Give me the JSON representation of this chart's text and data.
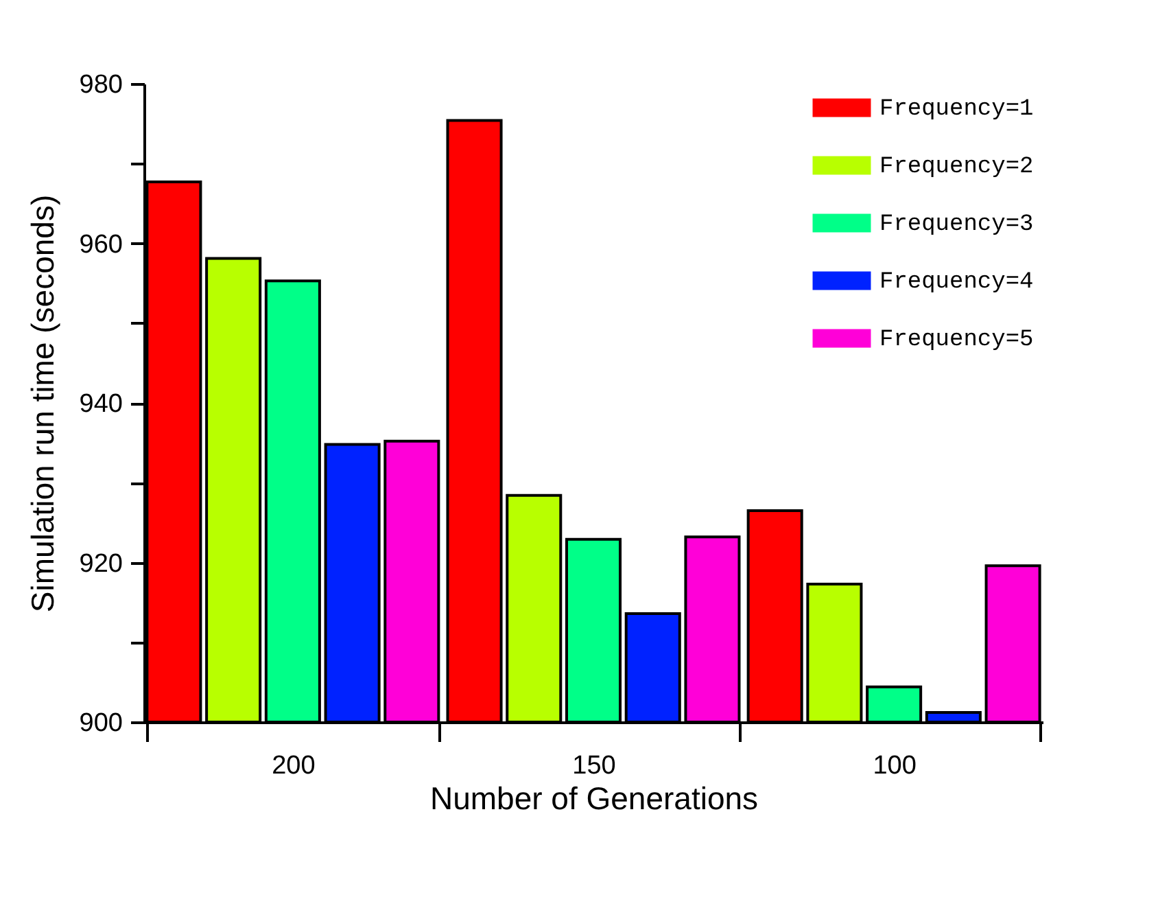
{
  "chart_data": {
    "type": "bar",
    "xlabel": "Number of Generations",
    "ylabel": "Simulation run time (seconds)",
    "categories": [
      "200",
      "150",
      "100"
    ],
    "series": [
      {
        "name": "Frequency=1",
        "color": "#ff0000",
        "values": [
          967.7,
          975.4,
          926.5
        ]
      },
      {
        "name": "Frequency=2",
        "color": "#b8ff00",
        "values": [
          958.1,
          928.4,
          917.3
        ]
      },
      {
        "name": "Frequency=3",
        "color": "#00ff88",
        "values": [
          955.3,
          922.9,
          904.4
        ]
      },
      {
        "name": "Frequency=4",
        "color": "#0022ff",
        "values": [
          934.8,
          913.6,
          901.2
        ]
      },
      {
        "name": "Frequency=5",
        "color": "#ff00d8",
        "values": [
          935.2,
          923.2,
          919.6
        ]
      }
    ],
    "ylim": [
      900,
      980
    ],
    "yticks": [
      900,
      {
        "value": 910,
        "label": null
      },
      920,
      {
        "value": 930,
        "label": null
      },
      940,
      {
        "value": 950,
        "label": null
      },
      960,
      {
        "value": 970,
        "label": null
      },
      980
    ],
    "legend": "top right",
    "grid": false
  }
}
